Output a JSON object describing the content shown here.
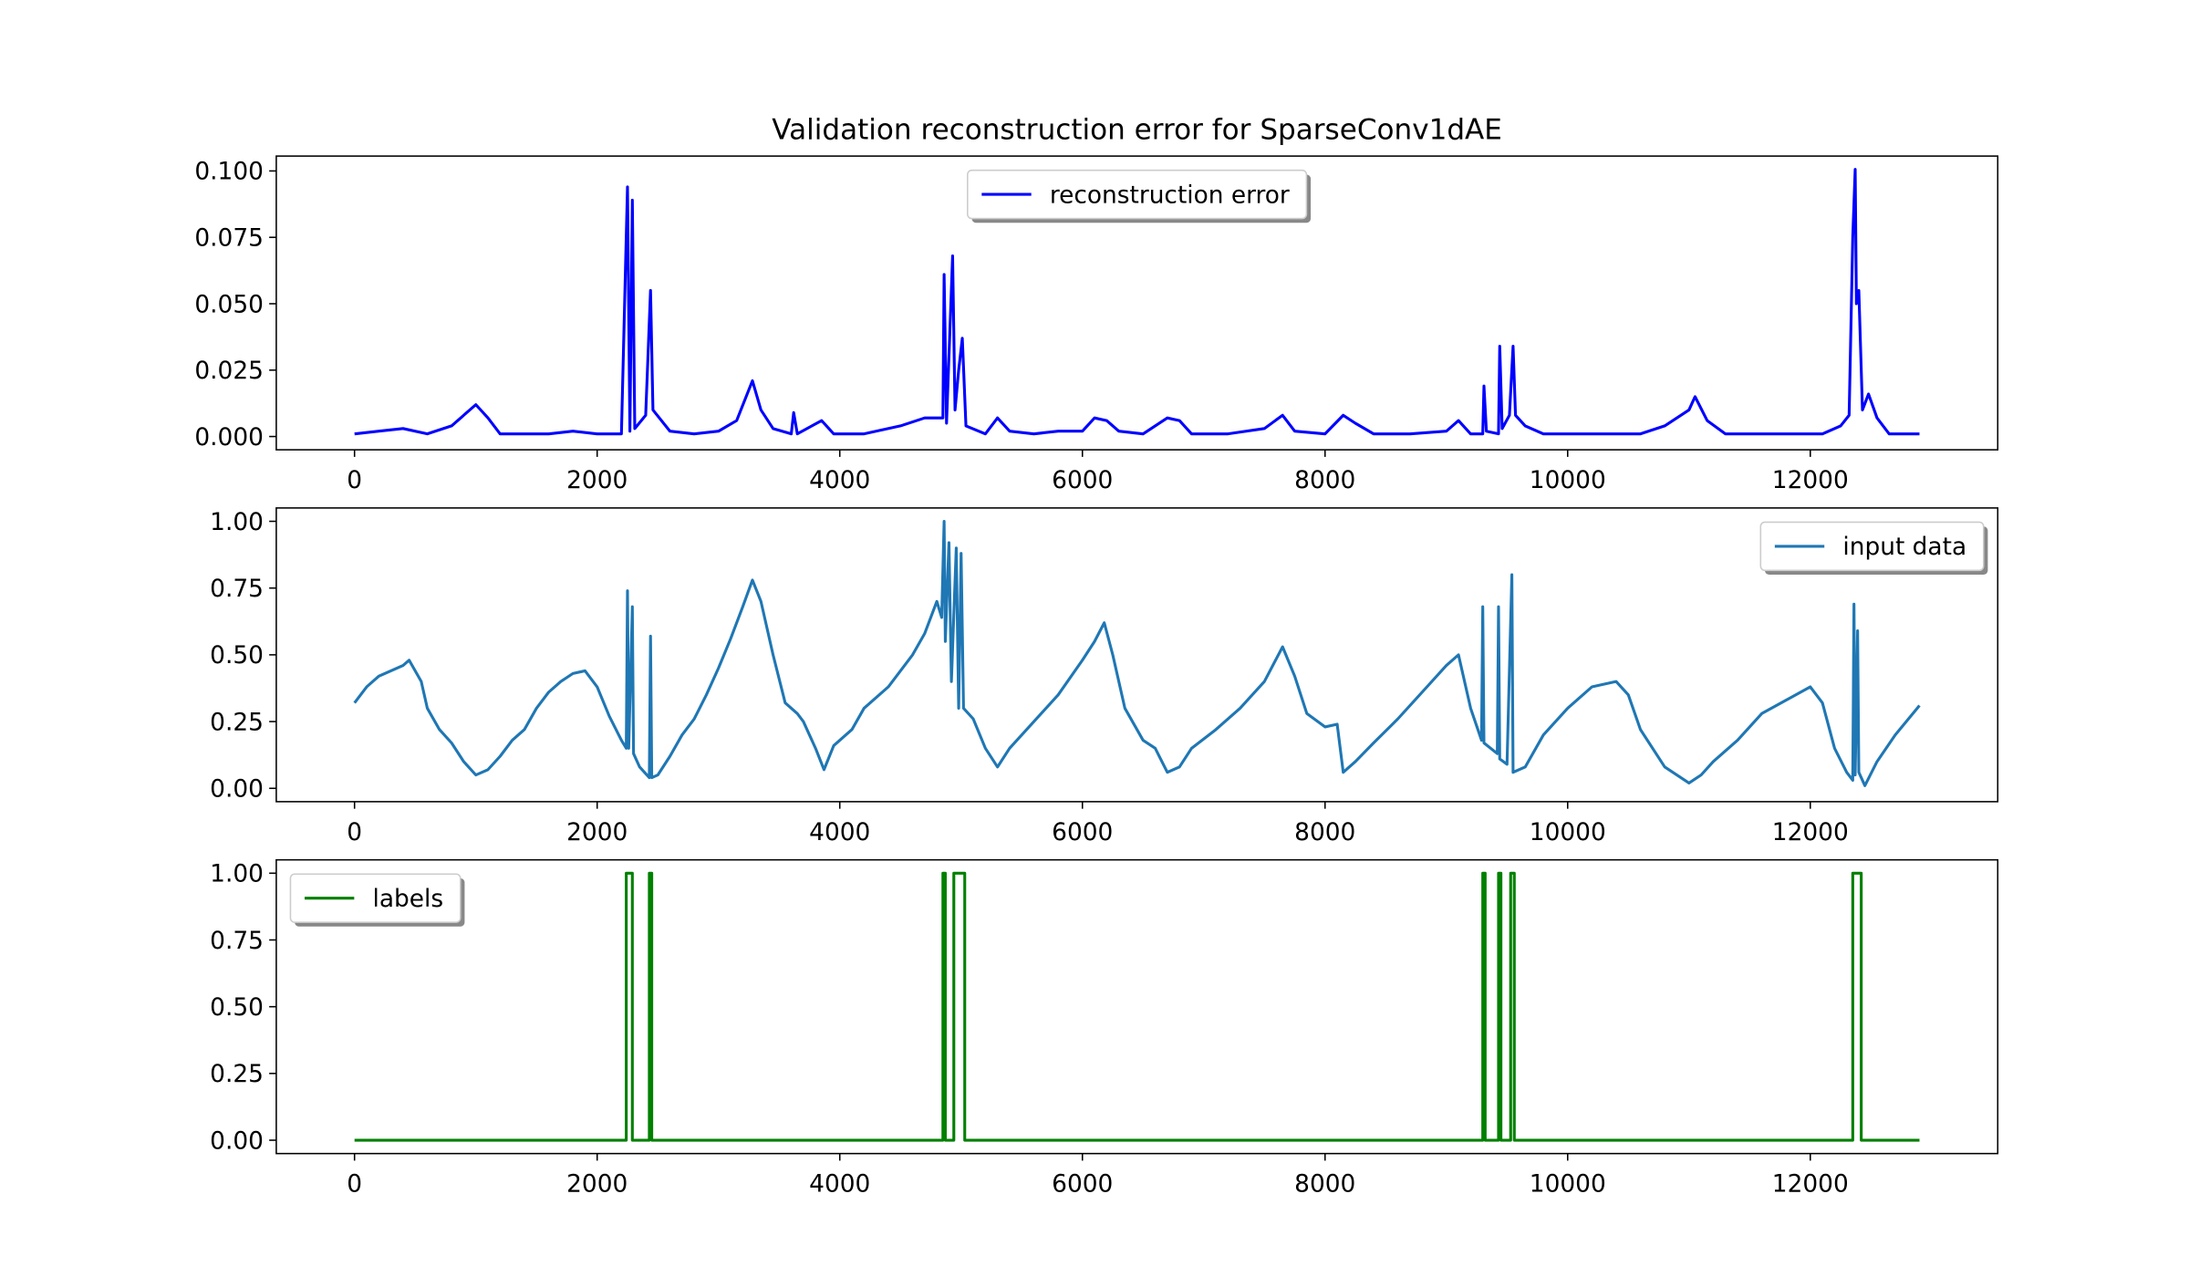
{
  "chart_data": [
    {
      "type": "line",
      "title": "Validation reconstruction error for SparseConv1dAE",
      "x": [
        0,
        200,
        400,
        600,
        800,
        900,
        1000,
        1100,
        1200,
        1400,
        1600,
        1800,
        2000,
        2200,
        2250,
        2270,
        2290,
        2310,
        2400,
        2440,
        2460,
        2600,
        2800,
        3000,
        3150,
        3280,
        3350,
        3450,
        3600,
        3620,
        3650,
        3850,
        3950,
        4200,
        4500,
        4700,
        4850,
        4860,
        4880,
        4930,
        4950,
        4980,
        5010,
        5040,
        5200,
        5300,
        5400,
        5600,
        5800,
        6000,
        6100,
        6200,
        6300,
        6500,
        6700,
        6800,
        6900,
        7200,
        7500,
        7650,
        7750,
        8000,
        8150,
        8250,
        8400,
        8700,
        9000,
        9100,
        9200,
        9300,
        9310,
        9330,
        9430,
        9440,
        9460,
        9520,
        9550,
        9570,
        9650,
        9800,
        10000,
        10300,
        10600,
        10800,
        11000,
        11050,
        11150,
        11300,
        11600,
        11900,
        12100,
        12250,
        12320,
        12350,
        12370,
        12380,
        12400,
        12430,
        12480,
        12550,
        12650,
        12900
      ],
      "series": [
        {
          "name": "reconstruction error",
          "color": "#0000ff",
          "values": [
            0.001,
            0.002,
            0.003,
            0.001,
            0.004,
            0.008,
            0.012,
            0.007,
            0.001,
            0.001,
            0.001,
            0.002,
            0.001,
            0.001,
            0.094,
            0.002,
            0.089,
            0.003,
            0.008,
            0.055,
            0.01,
            0.002,
            0.001,
            0.002,
            0.006,
            0.021,
            0.01,
            0.003,
            0.001,
            0.009,
            0.001,
            0.006,
            0.001,
            0.001,
            0.004,
            0.007,
            0.007,
            0.061,
            0.005,
            0.068,
            0.01,
            0.025,
            0.037,
            0.004,
            0.001,
            0.007,
            0.002,
            0.001,
            0.002,
            0.002,
            0.007,
            0.006,
            0.002,
            0.001,
            0.007,
            0.006,
            0.001,
            0.001,
            0.003,
            0.008,
            0.002,
            0.001,
            0.008,
            0.005,
            0.001,
            0.001,
            0.002,
            0.006,
            0.001,
            0.001,
            0.019,
            0.002,
            0.001,
            0.034,
            0.003,
            0.008,
            0.034,
            0.008,
            0.004,
            0.001,
            0.001,
            0.001,
            0.001,
            0.004,
            0.01,
            0.015,
            0.006,
            0.001,
            0.001,
            0.001,
            0.001,
            0.004,
            0.008,
            0.075,
            0.1006,
            0.05,
            0.055,
            0.01,
            0.016,
            0.007,
            0.001,
            0.001
          ]
        }
      ],
      "xlim": [
        -645,
        13545
      ],
      "ylim": [
        -0.005,
        0.1056
      ],
      "xticks": [
        0,
        2000,
        4000,
        6000,
        8000,
        10000,
        12000
      ],
      "yticks": [
        {
          "value": 0,
          "label": "0.000"
        },
        {
          "value": 0.025,
          "label": "0.025"
        },
        {
          "value": 0.05,
          "label": "0.050"
        },
        {
          "value": 0.075,
          "label": "0.075"
        },
        {
          "value": 0.1,
          "label": "0.100"
        }
      ],
      "legend": "upper center"
    },
    {
      "type": "line",
      "x": [
        0,
        100,
        200,
        300,
        400,
        450,
        550,
        600,
        700,
        800,
        900,
        1000,
        1100,
        1200,
        1300,
        1400,
        1500,
        1600,
        1700,
        1800,
        1900,
        2000,
        2100,
        2200,
        2240,
        2250,
        2260,
        2290,
        2300,
        2350,
        2430,
        2440,
        2450,
        2500,
        2600,
        2700,
        2800,
        2900,
        3000,
        3100,
        3200,
        3280,
        3350,
        3450,
        3550,
        3650,
        3700,
        3800,
        3870,
        3950,
        4100,
        4200,
        4400,
        4600,
        4700,
        4800,
        4840,
        4860,
        4870,
        4900,
        4920,
        4960,
        4980,
        5000,
        5020,
        5100,
        5200,
        5300,
        5400,
        5600,
        5800,
        6000,
        6100,
        6180,
        6250,
        6350,
        6500,
        6600,
        6700,
        6800,
        6900,
        7100,
        7300,
        7500,
        7650,
        7750,
        7850,
        8000,
        8100,
        8150,
        8250,
        8400,
        8600,
        8800,
        9000,
        9100,
        9200,
        9290,
        9300,
        9310,
        9420,
        9430,
        9440,
        9500,
        9540,
        9550,
        9650,
        9800,
        10000,
        10200,
        10400,
        10500,
        10600,
        10800,
        11000,
        11100,
        11200,
        11400,
        11600,
        11800,
        12000,
        12100,
        12200,
        12300,
        12350,
        12360,
        12370,
        12390,
        12400,
        12450,
        12550,
        12700,
        12900
      ],
      "series": [
        {
          "name": "input data",
          "color": "#1f77b4",
          "values": [
            0.32,
            0.38,
            0.42,
            0.44,
            0.46,
            0.48,
            0.4,
            0.3,
            0.22,
            0.17,
            0.1,
            0.05,
            0.07,
            0.12,
            0.18,
            0.22,
            0.3,
            0.36,
            0.4,
            0.43,
            0.44,
            0.38,
            0.27,
            0.18,
            0.15,
            0.74,
            0.15,
            0.68,
            0.13,
            0.08,
            0.04,
            0.57,
            0.04,
            0.05,
            0.12,
            0.2,
            0.26,
            0.35,
            0.45,
            0.56,
            0.68,
            0.78,
            0.7,
            0.5,
            0.32,
            0.28,
            0.25,
            0.15,
            0.07,
            0.16,
            0.22,
            0.3,
            0.38,
            0.5,
            0.58,
            0.7,
            0.64,
            1.0,
            0.55,
            0.92,
            0.4,
            0.9,
            0.3,
            0.88,
            0.3,
            0.26,
            0.15,
            0.08,
            0.15,
            0.25,
            0.35,
            0.48,
            0.55,
            0.62,
            0.5,
            0.3,
            0.18,
            0.15,
            0.06,
            0.08,
            0.15,
            0.22,
            0.3,
            0.4,
            0.53,
            0.42,
            0.28,
            0.23,
            0.24,
            0.06,
            0.1,
            0.17,
            0.26,
            0.36,
            0.46,
            0.5,
            0.3,
            0.18,
            0.68,
            0.17,
            0.13,
            0.68,
            0.11,
            0.09,
            0.8,
            0.06,
            0.08,
            0.2,
            0.3,
            0.38,
            0.4,
            0.35,
            0.22,
            0.08,
            0.02,
            0.05,
            0.1,
            0.18,
            0.28,
            0.33,
            0.38,
            0.32,
            0.15,
            0.06,
            0.03,
            0.69,
            0.05,
            0.59,
            0.06,
            0.01,
            0.1,
            0.2,
            0.31
          ]
        }
      ],
      "xlim": [
        -645,
        13545
      ],
      "ylim": [
        -0.05,
        1.05
      ],
      "xticks": [
        0,
        2000,
        4000,
        6000,
        8000,
        10000,
        12000
      ],
      "yticks": [
        {
          "value": 0,
          "label": "0.00"
        },
        {
          "value": 0.25,
          "label": "0.25"
        },
        {
          "value": 0.5,
          "label": "0.50"
        },
        {
          "value": 0.75,
          "label": "0.75"
        },
        {
          "value": 1,
          "label": "1.00"
        }
      ],
      "legend": "upper right"
    },
    {
      "type": "line",
      "x": [
        0,
        2240,
        2240,
        2290,
        2290,
        2430,
        2430,
        2450,
        2450,
        4850,
        4850,
        4870,
        4870,
        4940,
        4940,
        5030,
        5030,
        9300,
        9300,
        9320,
        9320,
        9430,
        9430,
        9450,
        9450,
        9530,
        9530,
        9560,
        9560,
        12350,
        12350,
        12420,
        12420,
        12900
      ],
      "series": [
        {
          "name": "labels",
          "color": "#008000",
          "values": [
            0,
            0,
            1,
            1,
            0,
            0,
            1,
            1,
            0,
            0,
            1,
            1,
            0,
            0,
            1,
            1,
            0,
            0,
            1,
            1,
            0,
            0,
            1,
            1,
            0,
            0,
            1,
            1,
            0,
            0,
            1,
            1,
            0,
            0
          ]
        }
      ],
      "xlim": [
        -645,
        13545
      ],
      "ylim": [
        -0.05,
        1.05
      ],
      "xticks": [
        0,
        2000,
        4000,
        6000,
        8000,
        10000,
        12000
      ],
      "yticks": [
        {
          "value": 0,
          "label": "0.00"
        },
        {
          "value": 0.25,
          "label": "0.25"
        },
        {
          "value": 0.5,
          "label": "0.50"
        },
        {
          "value": 0.75,
          "label": "0.75"
        },
        {
          "value": 1,
          "label": "1.00"
        }
      ],
      "legend": "upper left"
    }
  ]
}
